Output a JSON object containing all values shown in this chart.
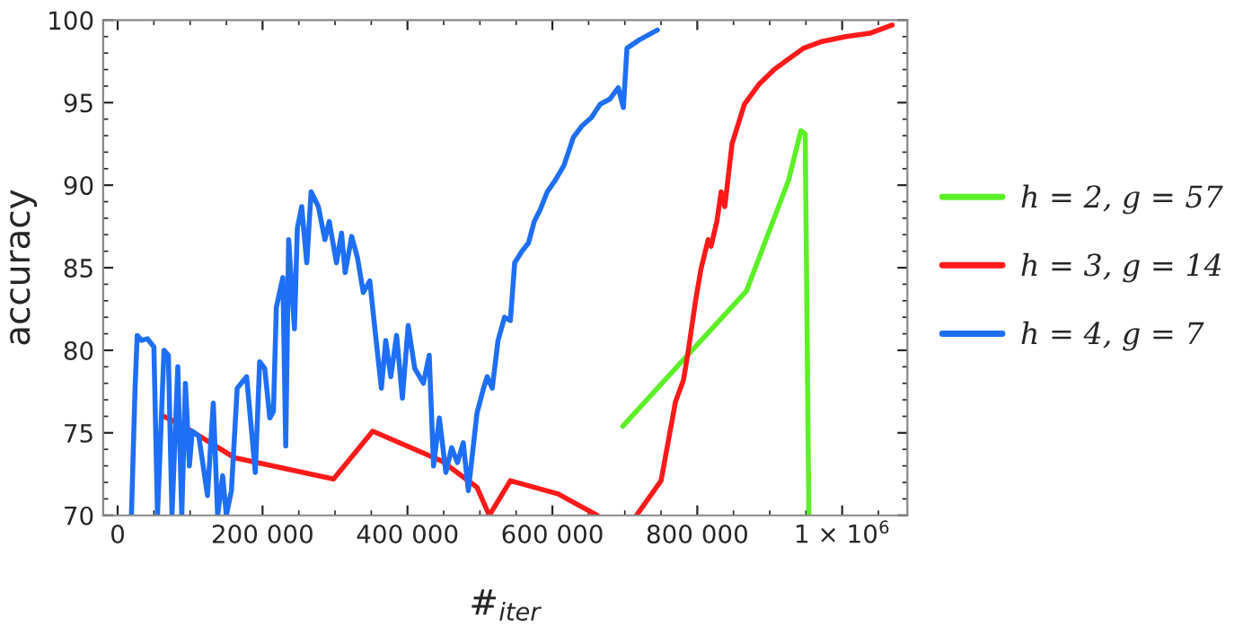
{
  "chart_data": {
    "type": "line",
    "xlabel": "#$_{iter}$",
    "ylabel": "accuracy",
    "legend": "right",
    "grid": false,
    "xlim": [
      -20000,
      1090000
    ],
    "ylim": [
      70,
      100
    ],
    "xticks": [
      0,
      {
        "value": 200000,
        "label": "200 000"
      },
      {
        "value": 400000,
        "label": "400 000"
      },
      {
        "value": 600000,
        "label": "600 000"
      },
      {
        "value": 800000,
        "label": "800 000"
      },
      {
        "value": 1000000,
        "label": "1 × 10$^{6}$"
      }
    ],
    "yticks": [
      70,
      75,
      80,
      85,
      90,
      95,
      100
    ],
    "series": [
      {
        "name": "h = 2, g = 57",
        "color": "#5cf028",
        "x": [
          697000,
          868000,
          926000,
          943000,
          949000,
          954000
        ],
        "values": [
          75.4,
          83.6,
          90.3,
          93.3,
          93.1,
          70
        ]
      },
      {
        "name": "h = 3, g = 14",
        "color": "#ff1a1a",
        "x": [
          64000,
          87000,
          128000,
          161000,
          298000,
          352000,
          447000,
          496000,
          513000,
          542000,
          608000,
          662000,
          690000,
          716000,
          750000,
          770000,
          781000,
          787000,
          798000,
          805000,
          815000,
          819000,
          827000,
          833000,
          838000,
          848000,
          865000,
          885000,
          906000,
          931000,
          947000,
          972000,
          1005000,
          1038000,
          1069000
        ],
        "values": [
          76.0,
          75.5,
          74.4,
          73.5,
          72.2,
          75.1,
          73.3,
          71.7,
          70,
          72.1,
          71.3,
          70,
          null,
          70,
          72.1,
          76.9,
          78.2,
          79.8,
          83.1,
          84.9,
          86.7,
          86.3,
          87.8,
          89.6,
          88.7,
          92.5,
          94.9,
          96.1,
          97,
          97.8,
          98.3,
          98.7,
          99,
          99.2,
          99.7
        ]
      },
      {
        "name": "h = 4, g = 7",
        "color": "#1e6ff5",
        "x": [
          19000,
          24000,
          27000,
          33000,
          41000,
          50000,
          55000,
          64000,
          70000,
          75000,
          83000,
          88500,
          93500,
          99000,
          103000,
          112000,
          124000,
          132000,
          138000,
          145000,
          150000,
          157000,
          165000,
          178000,
          190000,
          196000,
          203000,
          210000,
          215000,
          219000,
          228000,
          232000,
          236000,
          244000,
          248000,
          254000,
          261000,
          267000,
          277000,
          286000,
          292000,
          302000,
          309000,
          314000,
          323000,
          331000,
          339000,
          348000,
          356000,
          364000,
          370000,
          377000,
          385000,
          393000,
          401000,
          410000,
          422000,
          430000,
          436000,
          444000,
          453000,
          461000,
          469000,
          477000,
          484000,
          496000,
          505000,
          510000,
          517000,
          525000,
          534000,
          542000,
          548000,
          558000,
          567000,
          575000,
          583000,
          593000,
          604000,
          616000,
          629000,
          641000,
          654000,
          666000,
          679000,
          691000,
          698000,
          703000,
          720000,
          745000
        ],
        "values": [
          70,
          77.7,
          80.9,
          80.6,
          80.7,
          80.2,
          70,
          80,
          79.7,
          70,
          79,
          70,
          78,
          73,
          75.1,
          74.8,
          71.2,
          76.8,
          70,
          72.4,
          70,
          71.5,
          77.7,
          78.4,
          72.6,
          79.3,
          78.9,
          75.9,
          76.3,
          82.6,
          84.4,
          74.2,
          86.7,
          81.3,
          87.4,
          88.7,
          85.3,
          89.6,
          88.7,
          86.7,
          87.8,
          85.3,
          87.1,
          84.7,
          86.9,
          85.6,
          83.5,
          84.2,
          80.9,
          77.7,
          80.6,
          78.4,
          80.9,
          77.1,
          81.5,
          78.9,
          78,
          79.7,
          73,
          75.9,
          72.6,
          74.1,
          73.2,
          74.4,
          71.5,
          76.2,
          77.7,
          78.4,
          77.7,
          80.6,
          82,
          81.8,
          85.3,
          86,
          86.5,
          87.8,
          88.5,
          89.6,
          90.3,
          91.2,
          92.9,
          93.6,
          94.1,
          94.9,
          95.2,
          95.9,
          94.7,
          98.3,
          98.8,
          99.4
        ]
      }
    ]
  }
}
